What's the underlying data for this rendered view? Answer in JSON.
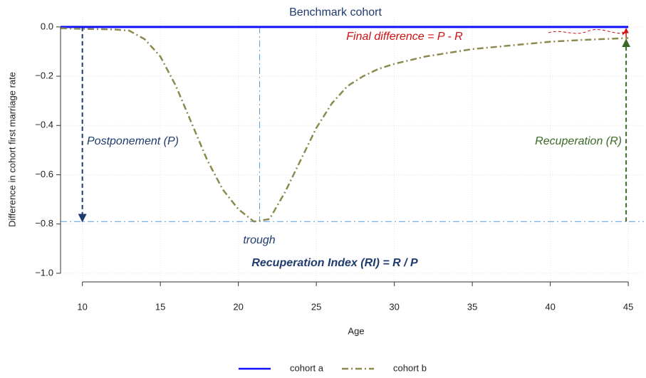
{
  "chart_data": {
    "type": "line",
    "title": "Benchmark cohort",
    "x_label": "Age",
    "y_label": "Difference in cohort first marriage rate",
    "x": [
      8.6,
      10,
      12,
      13,
      14,
      15,
      16,
      17,
      18,
      19,
      20,
      21,
      22,
      23,
      24,
      25,
      26,
      27,
      28,
      29,
      30,
      32,
      35,
      38,
      40,
      42,
      45
    ],
    "series": [
      {
        "name": "cohort a",
        "color": "#1010ff",
        "line_style": "solid",
        "values": [
          0,
          0,
          0,
          0,
          0,
          0,
          0,
          0,
          0,
          0,
          0,
          0,
          0,
          0,
          0,
          0,
          0,
          0,
          0,
          0,
          0,
          0,
          0,
          0,
          0,
          0,
          0
        ]
      },
      {
        "name": "cohort b",
        "color": "#8c8a4f",
        "line_style": "dashdot",
        "values": [
          -0.005,
          -0.008,
          -0.01,
          -0.015,
          -0.05,
          -0.12,
          -0.24,
          -0.39,
          -0.54,
          -0.66,
          -0.74,
          -0.79,
          -0.78,
          -0.67,
          -0.54,
          -0.41,
          -0.31,
          -0.24,
          -0.2,
          -0.17,
          -0.15,
          -0.12,
          -0.09,
          -0.072,
          -0.06,
          -0.053,
          -0.045
        ]
      }
    ],
    "annotations": {
      "final_difference": "Final difference = P - R",
      "postponement": "Postponement (P)",
      "recuperation": "Recuperation (R)",
      "trough": "trough",
      "index": "Recuperation Index (RI) = R / P"
    },
    "xlim": [
      8.6,
      46
    ],
    "ylim": [
      -1.035,
      0.04
    ],
    "xticks": [
      10,
      15,
      20,
      25,
      30,
      35,
      40,
      45
    ],
    "yticks": [
      {
        "value": 0,
        "label": "0.0"
      },
      {
        "value": -0.2,
        "label": "−0.2"
      },
      {
        "value": -0.4,
        "label": "−0.4"
      },
      {
        "value": -0.6,
        "label": "−0.6"
      },
      {
        "value": -0.8,
        "label": "−0.8"
      },
      {
        "value": -1,
        "label": "−1.0"
      }
    ],
    "grid": true,
    "legend": "bottom"
  }
}
